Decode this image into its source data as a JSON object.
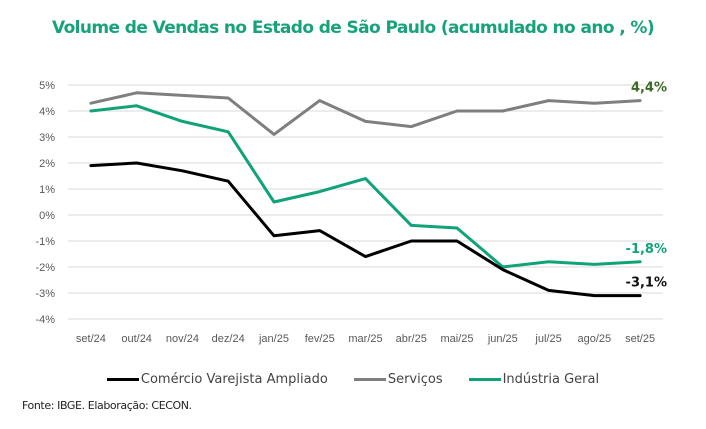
{
  "chart_data": {
    "type": "line",
    "title": "Volume de Vendas no Estado de São Paulo (acumulado no ano , %)",
    "xlabel": "",
    "ylabel": "",
    "ylim": [
      -4,
      5
    ],
    "yticks": [
      5,
      4,
      3,
      2,
      1,
      0,
      -1,
      -2,
      -3,
      -4
    ],
    "ytick_labels": [
      "5%",
      "4%",
      "3%",
      "2%",
      "1%",
      "0%",
      "-1%",
      "-2%",
      "-3%",
      "-4%"
    ],
    "grid": true,
    "legend_position": "bottom",
    "categories": [
      "set/24",
      "out/24",
      "nov/24",
      "dez/24",
      "jan/25",
      "fev/25",
      "mar/25",
      "abr/25",
      "mai/25",
      "jun/25",
      "jul/25",
      "ago/25",
      "set/25"
    ],
    "series": [
      {
        "name": "Comércio Varejista Ampliado",
        "color": "#000000",
        "values": [
          1.9,
          2.0,
          1.7,
          1.3,
          -0.8,
          -0.6,
          -1.6,
          -1.0,
          -1.0,
          -2.1,
          -2.9,
          -3.1,
          -3.1
        ],
        "end_label": "-3,1%",
        "end_label_color": "#111111"
      },
      {
        "name": "Serviços",
        "color": "#7f7f7f",
        "values": [
          4.3,
          4.7,
          4.6,
          4.5,
          3.1,
          4.4,
          3.6,
          3.4,
          4.0,
          4.0,
          4.4,
          4.3,
          4.4
        ],
        "end_label": "4,4%",
        "end_label_color": "#3b6a20"
      },
      {
        "name": "Indústria Geral",
        "color": "#10a37a",
        "values": [
          4.0,
          4.2,
          3.6,
          3.2,
          0.5,
          0.9,
          1.4,
          -0.4,
          -0.5,
          -2.0,
          -1.8,
          -1.9,
          -1.8
        ],
        "end_label": "-1,8%",
        "end_label_color": "#10a37a"
      }
    ]
  },
  "source": "Fonte: IBGE. Elaboração: CECON."
}
